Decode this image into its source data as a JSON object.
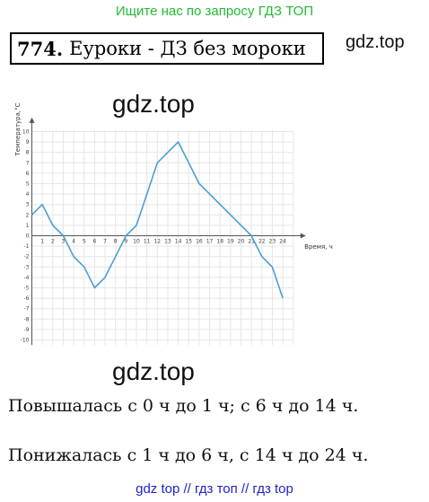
{
  "header": {
    "banner": "Ищите нас по запросу ГДЗ ТОП",
    "task_number": "774.",
    "task_title": "Еуроки - ДЗ без мороки"
  },
  "watermarks": {
    "right": "gdz.top",
    "chart_top": "gdz.top",
    "chart_bottom": "gdz.top"
  },
  "chart_data": {
    "type": "line",
    "xlabel": "Время, ч",
    "ylabel": "Температура,°C",
    "x_ticks": [
      1,
      2,
      3,
      4,
      5,
      6,
      7,
      8,
      9,
      10,
      11,
      12,
      13,
      14,
      15,
      16,
      17,
      18,
      19,
      20,
      21,
      22,
      23,
      24
    ],
    "y_ticks": [
      10,
      9,
      8,
      7,
      6,
      5,
      4,
      3,
      2,
      1,
      0,
      -1,
      -2,
      -3,
      -4,
      -5,
      -6,
      -7,
      -8,
      -9,
      -10
    ],
    "xlim": [
      0,
      25
    ],
    "ylim": [
      -10.5,
      11
    ],
    "grid": true,
    "series": [
      {
        "x": [
          0,
          1,
          2,
          3,
          4,
          5,
          6,
          7,
          8,
          9,
          10,
          11,
          12,
          13,
          14,
          15,
          16,
          17,
          18,
          19,
          20,
          21,
          22,
          23,
          24
        ],
        "values": [
          2,
          3,
          1,
          0,
          -2,
          -3,
          -5,
          -4,
          -2,
          0,
          1,
          4,
          7,
          8,
          9,
          7,
          5,
          4,
          3,
          2,
          1,
          0,
          -2,
          -3,
          -6
        ]
      }
    ],
    "line_color": "#4a9fd4"
  },
  "answers": {
    "line1": "Повышалась с 0 ч до 1 ч; с 6 ч до 14 ч.",
    "line2": "Понижалась с 1 ч до 6 ч, с 14 ч до 24 ч."
  },
  "footer": {
    "text": "gdz top  //  гдз топ  //  гдз top"
  }
}
